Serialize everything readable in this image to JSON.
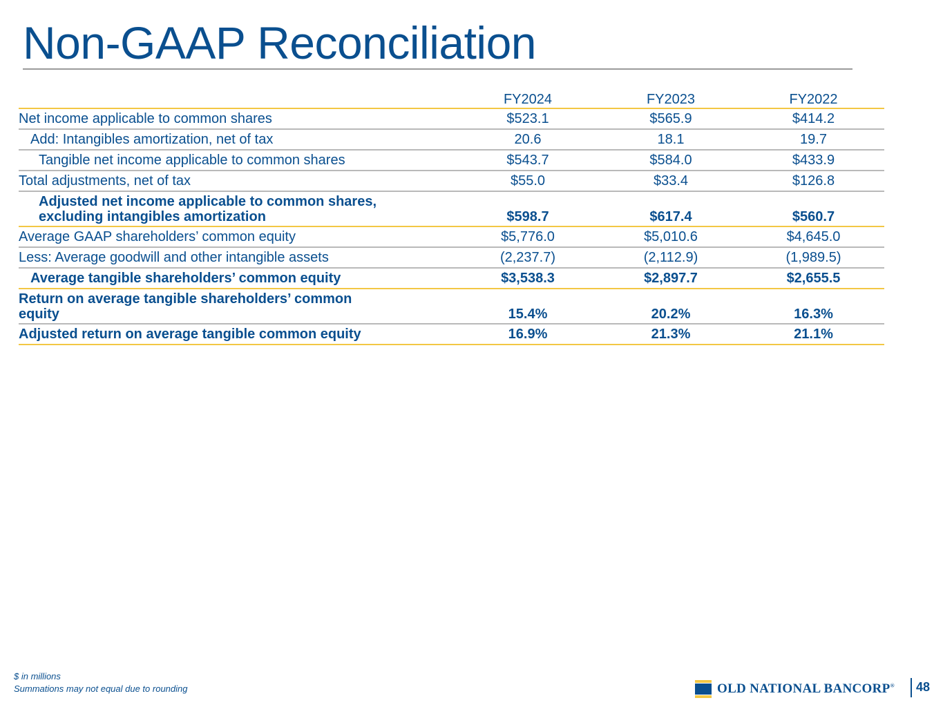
{
  "page": {
    "title": "Non-GAAP Reconciliation",
    "page_number": "48"
  },
  "table": {
    "headers": [
      "",
      "FY2024",
      "FY2023",
      "FY2022"
    ],
    "rows": [
      {
        "label": "Net income applicable to common shares",
        "values": [
          "$523.1",
          "$565.9",
          "$414.2"
        ]
      },
      {
        "label": "Add: Intangibles amortization, net of tax",
        "values": [
          "20.6",
          "18.1",
          "19.7"
        ]
      },
      {
        "label": "Tangible net income applicable to common shares",
        "values": [
          "$543.7",
          "$584.0",
          "$433.9"
        ]
      },
      {
        "label": "Total adjustments, net of tax",
        "values": [
          "$55.0",
          "$33.4",
          "$126.8"
        ]
      },
      {
        "label_line1": "Adjusted net income applicable to common shares,",
        "label_line2": "excluding intangibles amortization",
        "values": [
          "$598.7",
          "$617.4",
          "$560.7"
        ]
      },
      {
        "label": "Average GAAP shareholders’ common equity",
        "values": [
          "$5,776.0",
          "$5,010.6",
          "$4,645.0"
        ]
      },
      {
        "label": "Less: Average goodwill and other intangible assets",
        "values": [
          "(2,237.7)",
          "(2,112.9)",
          "(1,989.5)"
        ]
      },
      {
        "label": "Average tangible shareholders’ common equity",
        "values": [
          "$3,538.3",
          "$2,897.7",
          "$2,655.5"
        ]
      },
      {
        "label_line1": "Return on average tangible shareholders’ common",
        "label_line2": "equity",
        "values": [
          "15.4%",
          "20.2%",
          "16.3%"
        ]
      },
      {
        "label": "Adjusted return on average tangible common equity",
        "values": [
          "16.9%",
          "21.3%",
          "21.1%"
        ]
      }
    ]
  },
  "footnotes": {
    "line1": "$ in millions",
    "line2": "Summations may not equal due to rounding"
  },
  "logo": {
    "name": "OLD NATIONAL BANCORP",
    "mark": "®",
    "icon": "old-national-logo-icon"
  },
  "colors": {
    "brand_blue": "#0a4f8f",
    "accent_gold": "#f3c744",
    "rule_gray": "#b9b9b9"
  }
}
